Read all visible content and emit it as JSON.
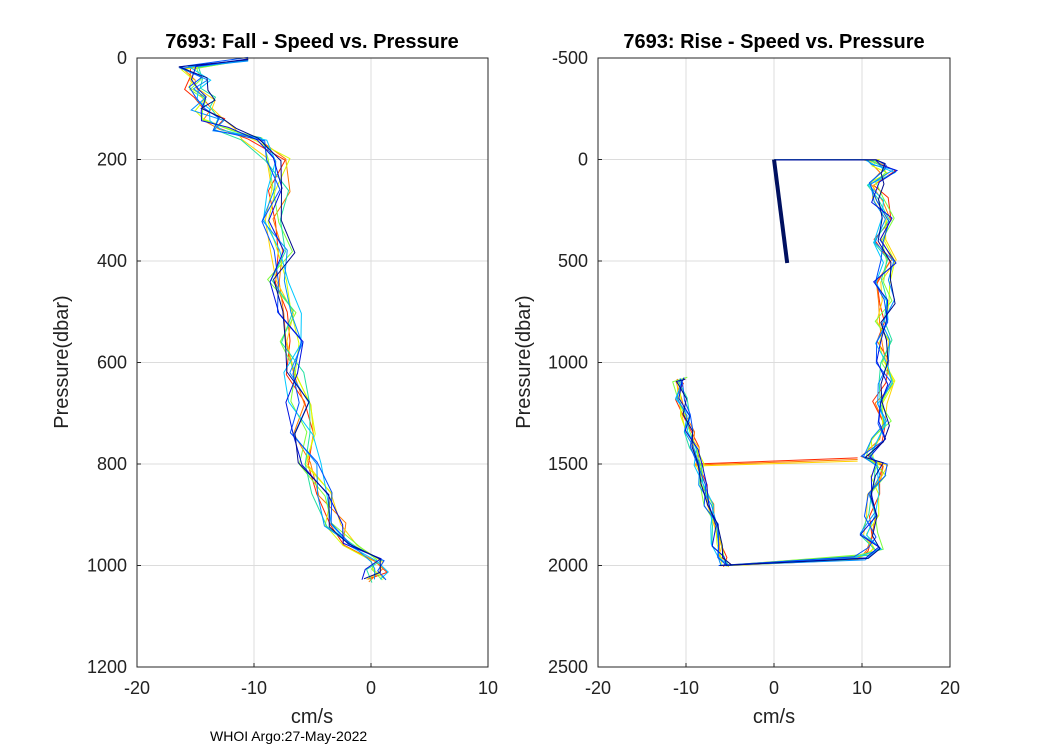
{
  "footer": "WHOI Argo:27-May-2022",
  "colors": {
    "series": [
      "#ff2a00",
      "#ff7a00",
      "#ffd400",
      "#d8ff00",
      "#7cff3c",
      "#22e0a0",
      "#00c8ff",
      "#0090ff",
      "#0050ff",
      "#0010e0",
      "#000a8c"
    ],
    "start_line": "#001060"
  },
  "chart_data": [
    {
      "type": "line",
      "title": "7693: Fall - Speed vs. Pressure",
      "xlabel": "cm/s",
      "ylabel": "Pressure(dbar)",
      "xlim": [
        -20,
        10
      ],
      "ylim": [
        0,
        1200
      ],
      "y_reversed": true,
      "grid": true,
      "xticks": [
        "-20",
        "-10",
        "0",
        "10"
      ],
      "yticks": [
        "0",
        "200",
        "400",
        "600",
        "800",
        "1000",
        "1200"
      ],
      "xtick_values": [
        -20,
        -10,
        0,
        10
      ],
      "ytick_values": [
        0,
        200,
        400,
        600,
        800,
        1000,
        1200
      ],
      "series_count": 11,
      "base_profile": {
        "pressure": [
          2,
          20,
          40,
          60,
          80,
          100,
          120,
          140,
          160,
          200,
          260,
          320,
          380,
          440,
          500,
          560,
          620,
          680,
          740,
          800,
          860,
          920,
          960,
          990,
          1010,
          1030
        ],
        "speed": [
          -10.5,
          -15.5,
          -14.5,
          -15.0,
          -14.0,
          -14.5,
          -13.5,
          -12.5,
          -10.0,
          -8.0,
          -7.8,
          -8.3,
          -7.5,
          -7.8,
          -7.0,
          -6.8,
          -6.5,
          -6.2,
          -5.8,
          -5.2,
          -4.3,
          -3.2,
          -2.0,
          0.3,
          0.5,
          0.2
        ]
      }
    },
    {
      "type": "line",
      "title": "7693: Rise - Speed vs. Pressure",
      "xlabel": "cm/s",
      "ylabel": "Pressure(dbar)",
      "xlim": [
        -20,
        20
      ],
      "ylim": [
        -500,
        2500
      ],
      "y_reversed": true,
      "grid": true,
      "xticks": [
        "-20",
        "-10",
        "0",
        "10",
        "20"
      ],
      "yticks": [
        "-500",
        "0",
        "500",
        "1000",
        "1500",
        "2000",
        "2500"
      ],
      "xtick_values": [
        -20,
        -10,
        0,
        10,
        20
      ],
      "ytick_values": [
        -500,
        0,
        500,
        1000,
        1500,
        2000,
        2500
      ],
      "series_count": 11,
      "start_line": {
        "speed": [
          0,
          1.5
        ],
        "pressure": [
          0,
          510
        ]
      },
      "base_profile": {
        "pressure": [
          2000,
          1960,
          1920,
          1850,
          1750,
          1650,
          1560,
          1500,
          1470,
          1380,
          1300,
          1200,
          1100,
          1000,
          900,
          800,
          700,
          600,
          500,
          400,
          300,
          200,
          120,
          60,
          20,
          2,
          2
        ],
        "speed": [
          -5.5,
          10.0,
          11.5,
          10.8,
          11.2,
          11.5,
          11.8,
          12.0,
          10.5,
          12.0,
          12.5,
          12.0,
          12.8,
          12.2,
          12.5,
          12.0,
          12.8,
          12.3,
          13.0,
          12.2,
          12.8,
          12.0,
          11.5,
          13.0,
          12.0,
          11.0,
          0.0
        ]
      },
      "lower_profile": {
        "pressure": [
          2000,
          1960,
          1900,
          1800,
          1700,
          1600,
          1500,
          1420,
          1340,
          1260,
          1180,
          1100,
          1080
        ],
        "speed": [
          -5.5,
          -6.0,
          -6.5,
          -7.0,
          -7.5,
          -8.0,
          -8.5,
          -9.0,
          -9.5,
          -10.0,
          -10.5,
          -11.0,
          -10.5
        ]
      },
      "crossover": {
        "speed": [
          -9.0,
          9.5
        ],
        "pressure": [
          1500,
          1470
        ]
      }
    }
  ]
}
